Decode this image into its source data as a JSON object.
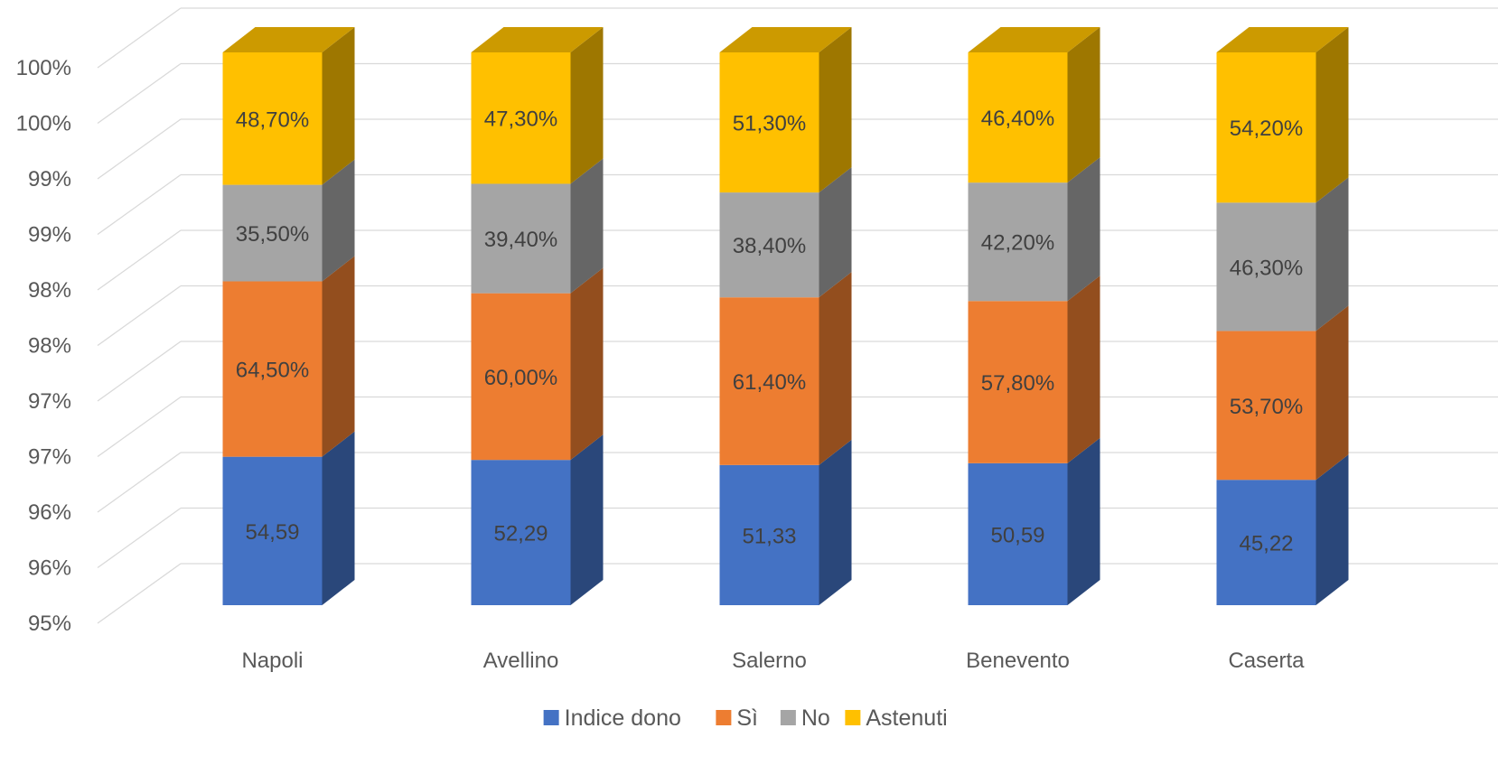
{
  "chart_data": {
    "type": "bar",
    "stacked": true,
    "three_d": true,
    "categories": [
      "Napoli",
      "Avellino",
      "Salerno",
      "Benevento",
      "Caserta"
    ],
    "y_tick_labels": [
      "95%",
      "96%",
      "96%",
      "97%",
      "97%",
      "98%",
      "98%",
      "99%",
      "99%",
      "100%",
      "100%"
    ],
    "series": [
      {
        "name": "Indice dono",
        "color": "#4472C4",
        "values": [
          54.59,
          52.29,
          51.33,
          50.59,
          45.22
        ],
        "labels": [
          "54,59",
          "52,29",
          "51,33",
          "50,59",
          "45,22"
        ]
      },
      {
        "name": "Sì",
        "color": "#ED7D31",
        "values": [
          64.5,
          60.0,
          61.4,
          57.8,
          53.7
        ],
        "labels": [
          "64,50%",
          "60,00%",
          "61,40%",
          "57,80%",
          "53,70%"
        ]
      },
      {
        "name": "No",
        "color": "#A5A5A5",
        "values": [
          35.5,
          39.4,
          38.4,
          42.2,
          46.3
        ],
        "labels": [
          "35,50%",
          "39,40%",
          "38,40%",
          "42,20%",
          "46,30%"
        ]
      },
      {
        "name": "Astenuti",
        "color": "#FFC000",
        "values": [
          48.7,
          47.3,
          51.3,
          46.4,
          54.2
        ],
        "labels": [
          "48,70%",
          "47,30%",
          "51,30%",
          "46,40%",
          "54,20%"
        ]
      }
    ],
    "grid": true,
    "legend": "bottom"
  }
}
